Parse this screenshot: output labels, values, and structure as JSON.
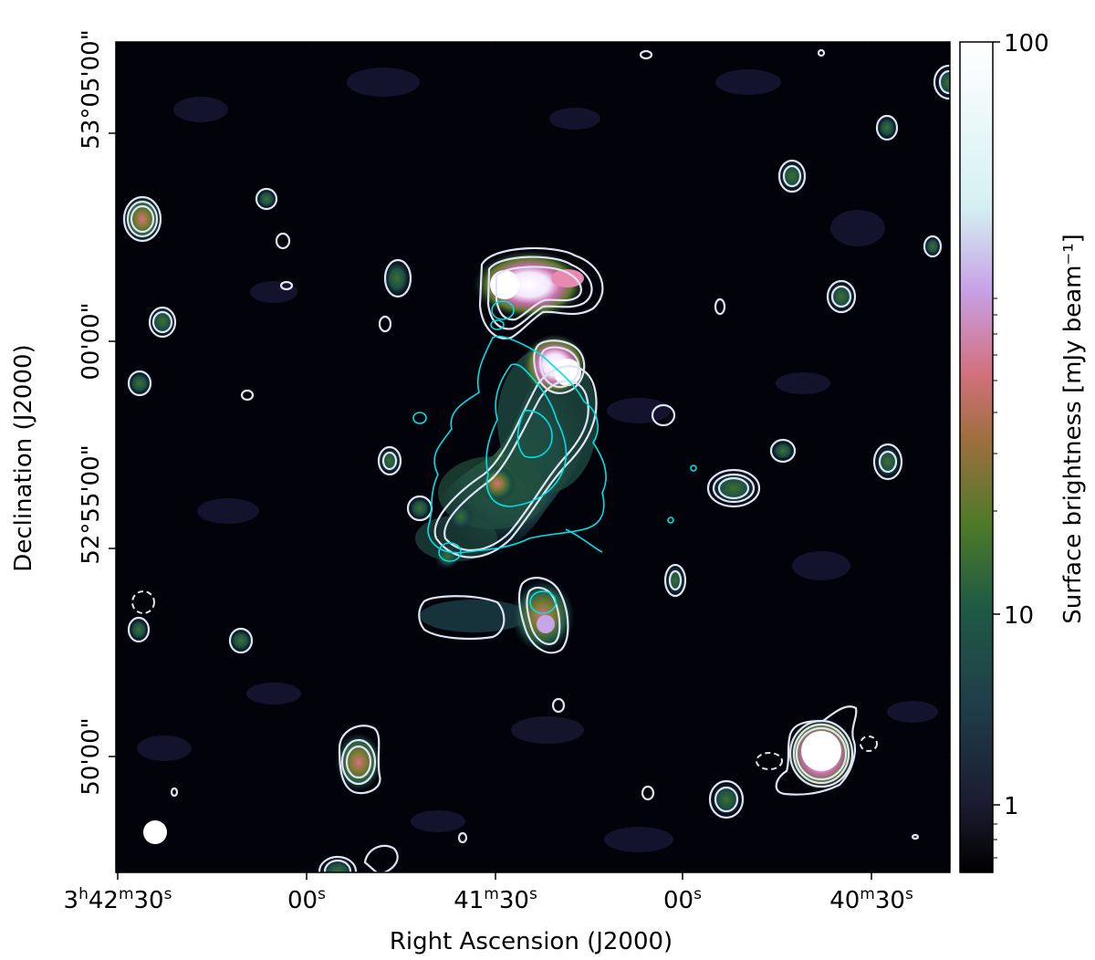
{
  "figure": {
    "x_axis_label": "Right Ascension (J2000)",
    "y_axis_label": "Declination (J2000)",
    "x_ticks": [
      {
        "h": "3",
        "hu": "h",
        "m": "42",
        "mu": "m",
        "s": "30",
        "su": "s"
      },
      {
        "s": "00",
        "su": "s"
      },
      {
        "m": "41",
        "mu": "m",
        "s": "30",
        "su": "s"
      },
      {
        "s": "00",
        "su": "s"
      },
      {
        "m": "40",
        "mu": "m",
        "s": "30",
        "su": "s"
      }
    ],
    "y_ticks": [
      "53°05'00\"",
      "00'00\"",
      "52°55'00\"",
      "50'00\""
    ],
    "y_ticks_hidden": [
      "52°55'00\" (minor)"
    ],
    "colorbar": {
      "label": "Surface brightness [mJy beam⁻¹]",
      "ticks": [
        "100",
        "10",
        "1"
      ],
      "scale": "log",
      "colormap": [
        "#000000",
        "#2c2d55",
        "#1f5a55",
        "#3d7a2a",
        "#8a7a3a",
        "#d7707a",
        "#c9a7e6",
        "#e5f7f0",
        "#ffffff"
      ]
    },
    "contours": {
      "white_solid": "#dfe4f4",
      "cyan": "#00e0e6"
    }
  }
}
